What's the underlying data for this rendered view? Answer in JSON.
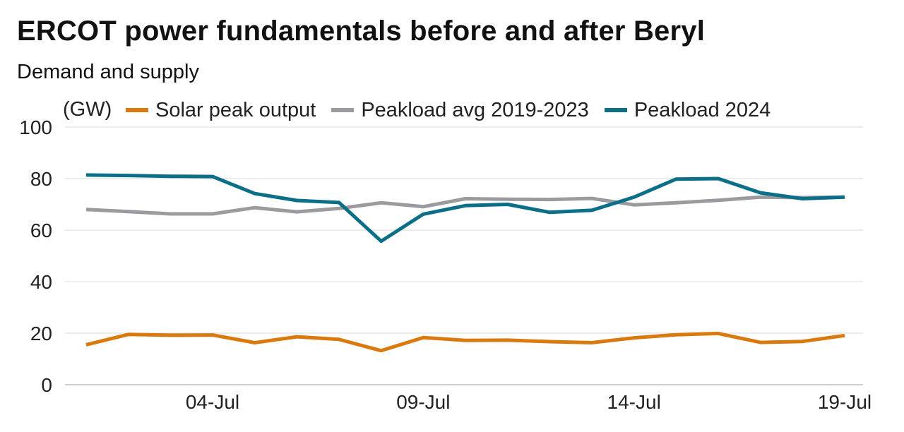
{
  "title": "ERCOT power fundamentals before and after Beryl",
  "subtitle": "Demand and supply",
  "unit_label": "(GW)",
  "colors": {
    "solar": "#D9790E",
    "avg": "#9B9B9F",
    "load2024": "#0B6F88",
    "grid": "#D9D9D9",
    "axis": "#BFBFBF"
  },
  "chart_data": {
    "type": "line",
    "title": "ERCOT power fundamentals before and after Beryl",
    "subtitle": "Demand and supply",
    "ylabel": "(GW)",
    "ylim": [
      0,
      100
    ],
    "yticks": [
      0,
      20,
      40,
      60,
      80,
      100
    ],
    "grid": true,
    "legend_position": "top",
    "x": [
      "01-Jul",
      "02-Jul",
      "03-Jul",
      "04-Jul",
      "05-Jul",
      "06-Jul",
      "07-Jul",
      "08-Jul",
      "09-Jul",
      "10-Jul",
      "11-Jul",
      "12-Jul",
      "13-Jul",
      "14-Jul",
      "15-Jul",
      "16-Jul",
      "17-Jul",
      "18-Jul",
      "19-Jul"
    ],
    "xtick_labels": [
      "04-Jul",
      "09-Jul",
      "14-Jul",
      "19-Jul"
    ],
    "series": [
      {
        "name": "Solar peak output",
        "color": "#D9790E",
        "values": [
          15.5,
          19.5,
          19.2,
          19.3,
          16.3,
          18.6,
          17.6,
          13.2,
          18.3,
          17.2,
          17.3,
          16.7,
          16.3,
          18.2,
          19.4,
          19.9,
          16.4,
          16.8,
          19.1
        ]
      },
      {
        "name": "Peakload avg 2019-2023",
        "color": "#9B9B9F",
        "values": [
          68.0,
          67.2,
          66.3,
          66.3,
          68.7,
          67.1,
          68.4,
          70.6,
          69.1,
          72.2,
          72.0,
          71.9,
          72.3,
          69.8,
          70.6,
          71.6,
          72.8,
          72.6,
          72.8
        ]
      },
      {
        "name": "Peakload 2024",
        "color": "#0B6F88",
        "values": [
          81.4,
          81.2,
          80.9,
          80.8,
          74.2,
          71.5,
          70.7,
          55.7,
          66.2,
          69.5,
          70.0,
          66.9,
          67.7,
          72.8,
          79.8,
          80.0,
          74.5,
          72.2,
          72.8
        ]
      }
    ]
  }
}
